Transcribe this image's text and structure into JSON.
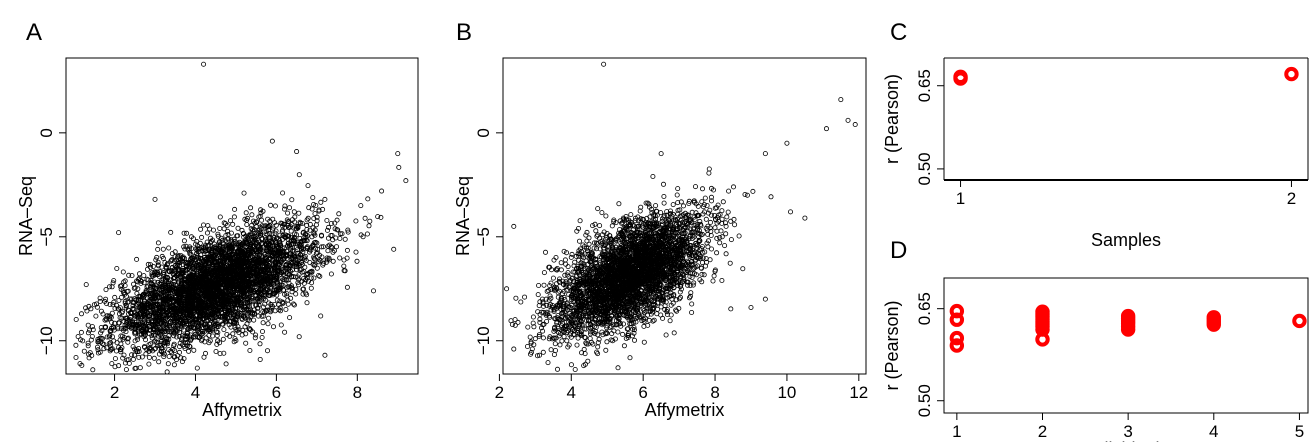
{
  "chart_data": [
    {
      "panel": "A",
      "type": "scatter",
      "xlabel": "Affymetrix",
      "ylabel": "RNA–Seq",
      "xlim": [
        0.8,
        9.5
      ],
      "ylim": [
        -11.6,
        3.6
      ],
      "xticks": [
        2,
        4,
        6,
        8
      ],
      "yticks": [
        -10,
        -5,
        0
      ],
      "marker_color": "#000000",
      "marker": "open-circle",
      "points": [
        [
          4.2,
          3.3
        ],
        [
          5.9,
          -0.4
        ],
        [
          9.0,
          -1.0
        ],
        [
          9.2,
          -2.3
        ],
        [
          3.0,
          -3.2
        ],
        [
          2.1,
          -4.8
        ],
        [
          6.5,
          -0.9
        ],
        [
          8.6,
          -2.8
        ],
        [
          1.3,
          -7.3
        ],
        [
          1.1,
          -9.8
        ],
        [
          2.1,
          -11.2
        ],
        [
          3.3,
          -11.5
        ],
        [
          5.6,
          -10.9
        ],
        [
          4.7,
          -10.6
        ],
        [
          7.2,
          -10.7
        ],
        [
          8.9,
          -5.6
        ],
        [
          8.4,
          -7.6
        ],
        [
          1.7,
          -9.9
        ],
        [
          2.6,
          -10.8
        ],
        [
          5.2,
          -2.9
        ],
        [
          4.1,
          -6.2
        ],
        [
          4.5,
          -7.4
        ],
        [
          5.0,
          -6.6
        ],
        [
          3.8,
          -8.0
        ],
        [
          5.5,
          -5.7
        ],
        [
          6.2,
          -4.4
        ],
        [
          3.2,
          -8.9
        ],
        [
          4.8,
          -8.4
        ],
        [
          6.8,
          -3.6
        ],
        [
          2.9,
          -7.1
        ],
        [
          5.8,
          -7.2
        ],
        [
          4.3,
          -9.3
        ],
        [
          7.5,
          -4.2
        ],
        [
          3.5,
          -6.4
        ],
        [
          6.1,
          -6.1
        ],
        [
          2.4,
          -9.1
        ],
        [
          5.3,
          -8.9
        ],
        [
          7.0,
          -5.3
        ],
        [
          3.9,
          -5.0
        ],
        [
          4.6,
          -4.6
        ]
      ],
      "point_count_note": "many thousands of points forming a dense elliptical cloud centred near (4.5, -7.5)"
    },
    {
      "panel": "B",
      "type": "scatter",
      "xlabel": "Affymetrix",
      "ylabel": "RNA–Seq",
      "xlim": [
        2.1,
        12.2
      ],
      "ylim": [
        -11.6,
        3.6
      ],
      "xticks": [
        2,
        4,
        6,
        8,
        10,
        12
      ],
      "yticks": [
        -10,
        -5,
        0
      ],
      "marker_color": "#000000",
      "marker": "open-circle",
      "points": [
        [
          4.9,
          3.3
        ],
        [
          11.5,
          1.6
        ],
        [
          11.1,
          0.2
        ],
        [
          11.7,
          0.6
        ],
        [
          11.9,
          0.4
        ],
        [
          10.0,
          -0.5
        ],
        [
          9.4,
          -1.0
        ],
        [
          10.5,
          -4.1
        ],
        [
          10.1,
          -3.8
        ],
        [
          2.4,
          -4.5
        ],
        [
          2.2,
          -7.5
        ],
        [
          2.7,
          -7.9
        ],
        [
          2.4,
          -10.4
        ],
        [
          3.0,
          -9.9
        ],
        [
          5.3,
          -11.3
        ],
        [
          6.5,
          -1.0
        ],
        [
          8.9,
          -3.0
        ],
        [
          9.4,
          -8.0
        ],
        [
          9.0,
          -8.4
        ],
        [
          3.8,
          -5.7
        ],
        [
          5.5,
          -6.5
        ],
        [
          6.0,
          -5.2
        ],
        [
          4.4,
          -7.3
        ],
        [
          6.8,
          -4.0
        ],
        [
          5.1,
          -8.4
        ],
        [
          4.0,
          -9.1
        ],
        [
          7.3,
          -5.6
        ],
        [
          6.2,
          -7.0
        ],
        [
          3.6,
          -6.6
        ],
        [
          5.8,
          -9.1
        ],
        [
          7.9,
          -3.1
        ],
        [
          4.7,
          -5.3
        ],
        [
          6.6,
          -8.5
        ],
        [
          3.3,
          -8.0
        ],
        [
          8.2,
          -5.0
        ],
        [
          5.0,
          -7.7
        ],
        [
          4.2,
          -4.6
        ],
        [
          7.1,
          -6.8
        ],
        [
          5.6,
          -4.2
        ],
        [
          6.4,
          -6.0
        ]
      ],
      "point_count_note": "many thousands of points forming a dense elliptical cloud centred near (5.5, -7)"
    },
    {
      "panel": "C",
      "type": "scatter",
      "xlabel": "Samples",
      "ylabel": "r (Pearson)",
      "xlim": [
        0.95,
        2.05
      ],
      "ylim": [
        0.48,
        0.7
      ],
      "xticks": [
        1,
        2
      ],
      "yticks": [
        0.5,
        0.65
      ],
      "ytick_labels": [
        "0.50",
        "0.65"
      ],
      "marker_color": "#ff0000",
      "marker": "thick-open-circle",
      "points": [
        [
          1,
          0.663
        ],
        [
          1,
          0.666
        ],
        [
          2,
          0.671
        ]
      ]
    },
    {
      "panel": "D",
      "type": "scatter",
      "xlabel": "Individuals",
      "ylabel": "r (Pearson)",
      "xlim": [
        0.85,
        5.1
      ],
      "ylim": [
        0.48,
        0.7
      ],
      "xticks": [
        1,
        2,
        3,
        4,
        5
      ],
      "yticks": [
        0.5,
        0.65
      ],
      "ytick_labels": [
        "0.50",
        "0.65"
      ],
      "marker_color": "#ff0000",
      "marker": "thick-open-circle",
      "points": [
        [
          1,
          0.646
        ],
        [
          1,
          0.632
        ],
        [
          1,
          0.602
        ],
        [
          1,
          0.59
        ],
        [
          2,
          0.645
        ],
        [
          2,
          0.641
        ],
        [
          2,
          0.637
        ],
        [
          2,
          0.633
        ],
        [
          2,
          0.629
        ],
        [
          2,
          0.625
        ],
        [
          2,
          0.621
        ],
        [
          2,
          0.616
        ],
        [
          2,
          0.6
        ],
        [
          3,
          0.638
        ],
        [
          3,
          0.634
        ],
        [
          3,
          0.63
        ],
        [
          3,
          0.626
        ],
        [
          3,
          0.621
        ],
        [
          3,
          0.616
        ],
        [
          4,
          0.636
        ],
        [
          4,
          0.632
        ],
        [
          4,
          0.628
        ],
        [
          4,
          0.624
        ],
        [
          5,
          0.63
        ]
      ]
    }
  ]
}
